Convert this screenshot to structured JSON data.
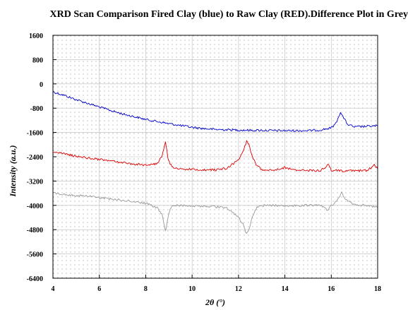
{
  "chart_data": {
    "type": "line",
    "title": "XRD Scan Comparison Fired Clay (blue) to Raw Clay (RED).Difference Plot in Grey",
    "xlabel": "2θ (°)",
    "ylabel": "Intensity (a.u.)",
    "xlim": [
      4,
      18
    ],
    "ylim": [
      -6400,
      1600
    ],
    "x_ticks": [
      4,
      6,
      8,
      10,
      12,
      14,
      16,
      18
    ],
    "y_ticks": [
      1600,
      800,
      0,
      -800,
      -1600,
      -2400,
      -3200,
      -4000,
      -4800,
      -5600,
      -6400
    ],
    "grid": true,
    "legend": "none",
    "series": [
      {
        "color": "#0000cc",
        "x": [
          4.0,
          4.5,
          5.0,
          5.5,
          6.0,
          6.5,
          7.0,
          7.5,
          8.0,
          8.5,
          9.0,
          9.5,
          10.0,
          10.5,
          11.0,
          11.5,
          12.0,
          12.5,
          13.0,
          13.5,
          14.0,
          14.5,
          15.0,
          15.5,
          16.0,
          16.2,
          16.4,
          16.5,
          16.7,
          17.0,
          17.5,
          18.0
        ],
        "y": [
          -260,
          -380,
          -520,
          -640,
          -760,
          -880,
          -990,
          -1080,
          -1170,
          -1240,
          -1310,
          -1370,
          -1430,
          -1470,
          -1500,
          -1510,
          -1520,
          -1530,
          -1530,
          -1540,
          -1540,
          -1540,
          -1540,
          -1520,
          -1450,
          -1300,
          -920,
          -1080,
          -1330,
          -1420,
          -1400,
          -1380
        ]
      },
      {
        "color": "#dd0000",
        "x": [
          4.0,
          4.5,
          5.0,
          5.5,
          6.0,
          6.5,
          7.0,
          7.5,
          8.0,
          8.5,
          8.7,
          8.85,
          8.95,
          9.05,
          9.2,
          9.5,
          10.0,
          10.5,
          11.0,
          11.5,
          12.0,
          12.2,
          12.35,
          12.45,
          12.6,
          12.8,
          13.0,
          13.5,
          13.9,
          14.0,
          14.2,
          14.5,
          15.0,
          15.5,
          15.7,
          15.85,
          16.0,
          16.5,
          17.0,
          17.5,
          17.7,
          17.85,
          18.0
        ],
        "y": [
          -2230,
          -2310,
          -2380,
          -2440,
          -2490,
          -2540,
          -2590,
          -2640,
          -2680,
          -2620,
          -2380,
          -1880,
          -2400,
          -2650,
          -2760,
          -2800,
          -2820,
          -2830,
          -2830,
          -2780,
          -2500,
          -2220,
          -1900,
          -2000,
          -2420,
          -2700,
          -2820,
          -2830,
          -2780,
          -2750,
          -2800,
          -2840,
          -2850,
          -2860,
          -2780,
          -2620,
          -2840,
          -2870,
          -2860,
          -2850,
          -2780,
          -2670,
          -2800
        ]
      },
      {
        "color": "#999999",
        "x": [
          4.0,
          4.5,
          5.0,
          5.5,
          6.0,
          6.5,
          7.0,
          7.5,
          8.0,
          8.5,
          8.7,
          8.85,
          8.95,
          9.05,
          9.2,
          9.5,
          10.0,
          10.5,
          11.0,
          11.5,
          12.0,
          12.2,
          12.35,
          12.45,
          12.6,
          12.8,
          13.0,
          13.5,
          14.0,
          14.5,
          15.0,
          15.5,
          15.7,
          15.85,
          16.0,
          16.3,
          16.45,
          16.6,
          17.0,
          17.5,
          18.0
        ],
        "y": [
          -3590,
          -3650,
          -3680,
          -3700,
          -3750,
          -3790,
          -3830,
          -3870,
          -3930,
          -4080,
          -4300,
          -4860,
          -4420,
          -4100,
          -4000,
          -4010,
          -4020,
          -4030,
          -4040,
          -4100,
          -4400,
          -4620,
          -4940,
          -4780,
          -4380,
          -4050,
          -4000,
          -4000,
          -4010,
          -4010,
          -4000,
          -3980,
          -4080,
          -4180,
          -4010,
          -3800,
          -3590,
          -3800,
          -3990,
          -4000,
          -4060
        ]
      }
    ]
  }
}
